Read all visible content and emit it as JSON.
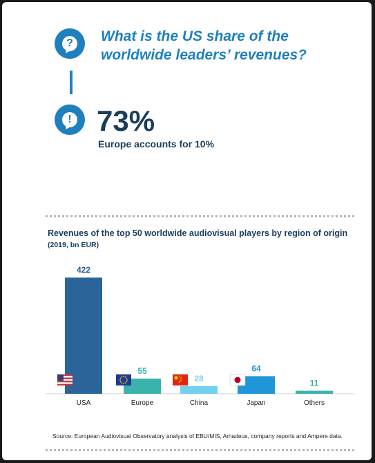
{
  "qa": {
    "question": "What is the US share of the worldwide leaders’ revenues?",
    "question_icon": "?",
    "answer_icon": "!",
    "answer_value": "73%",
    "answer_note": "Europe accounts for 10%"
  },
  "colors": {
    "accent": "#1f80be",
    "dark_text": "#1a3d5c"
  },
  "chart_data": {
    "type": "bar",
    "title": "Revenues of the top 50 worldwide audiovisual players by region of origin",
    "subtitle": "(2019, bn EUR)",
    "categories": [
      "USA",
      "Europe",
      "China",
      "Japan",
      "Others"
    ],
    "values": [
      422,
      55,
      28,
      64,
      11
    ],
    "value_labels": [
      "422",
      "55",
      "28",
      "64",
      "11"
    ],
    "bar_colors": [
      "#2b6499",
      "#3bb3ad",
      "#74d0f1",
      "#1f96d8",
      "#3bb3ad"
    ],
    "label_colors": [
      "#2b6499",
      "#3bb3ad",
      "#74d0f1",
      "#1f96d8",
      "#3bb3ad"
    ],
    "flag_icons": [
      "us-flag-icon",
      "eu-flag-icon",
      "china-flag-icon",
      "japan-flag-icon",
      ""
    ],
    "ylim": [
      0,
      422
    ],
    "grid": false,
    "legend": "none"
  },
  "source": "Source: European Audiovisual Observatory analysis of EBU/MIS, Amadeus, company reports and Ampere data."
}
